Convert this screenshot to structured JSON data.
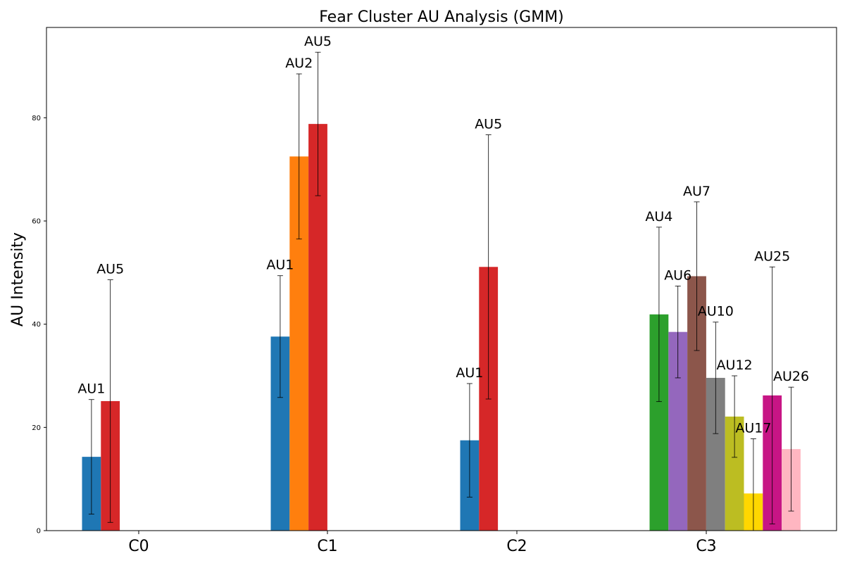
{
  "chart_data": {
    "type": "bar",
    "title": "Fear Cluster AU Analysis (GMM)",
    "xlabel": "",
    "ylabel": "AU Intensity",
    "ylim": [
      0,
      97.5
    ],
    "yticks": [
      0,
      20,
      40,
      60,
      80
    ],
    "grid": false,
    "legend": "none",
    "categories": [
      "C0",
      "C1",
      "C2",
      "C3"
    ],
    "groups": [
      {
        "category": "C0",
        "bars": [
          {
            "au": "AU1",
            "value": 14.3,
            "err": 11.1,
            "color": "#1f77b4"
          },
          {
            "au": "AU5",
            "value": 25.1,
            "err": 23.5,
            "color": "#d62728"
          }
        ]
      },
      {
        "category": "C1",
        "bars": [
          {
            "au": "AU1",
            "value": 37.6,
            "err": 11.8,
            "color": "#1f77b4"
          },
          {
            "au": "AU2",
            "value": 72.5,
            "err": 16.0,
            "color": "#ff7f0e"
          },
          {
            "au": "AU5",
            "value": 78.8,
            "err": 13.9,
            "color": "#d62728"
          }
        ]
      },
      {
        "category": "C2",
        "bars": [
          {
            "au": "AU1",
            "value": 17.5,
            "err": 11.0,
            "color": "#1f77b4"
          },
          {
            "au": "AU5",
            "value": 51.1,
            "err": 25.6,
            "color": "#d62728"
          }
        ]
      },
      {
        "category": "C3",
        "bars": [
          {
            "au": "AU4",
            "value": 41.9,
            "err": 16.9,
            "color": "#2ca02c"
          },
          {
            "au": "AU6",
            "value": 38.5,
            "err": 8.9,
            "color": "#9467bd"
          },
          {
            "au": "AU7",
            "value": 49.3,
            "err": 14.4,
            "color": "#8c564b"
          },
          {
            "au": "AU10",
            "value": 29.6,
            "err": 10.8,
            "color": "#7f7f7f"
          },
          {
            "au": "AU12",
            "value": 22.1,
            "err": 7.9,
            "color": "#bcbd22"
          },
          {
            "au": "AU17",
            "value": 7.2,
            "err": 10.6,
            "color": "#ffd700"
          },
          {
            "au": "AU25",
            "value": 26.2,
            "err": 24.9,
            "color": "#c71585"
          },
          {
            "au": "AU26",
            "value": 15.8,
            "err": 12.0,
            "color": "#ffb6c1"
          }
        ]
      }
    ]
  }
}
